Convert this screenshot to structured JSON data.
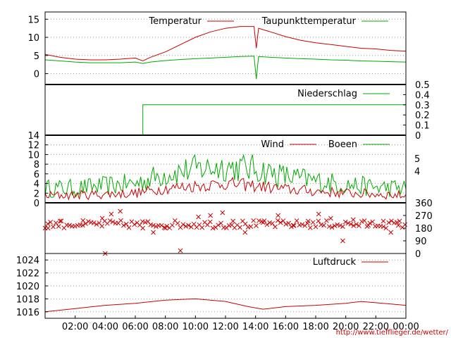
{
  "colors": {
    "red": "#cc0000",
    "green": "#00aa00",
    "axis": "#000000",
    "grid": "#999999",
    "source": "#cc0000"
  },
  "source_url": "http://www.tiefflieger.de/wetter/",
  "chart_data": [
    {
      "id": "temperature",
      "type": "line",
      "title": "",
      "ylim": [
        -3,
        17
      ],
      "y_ticks_left": [
        0,
        5,
        10,
        15
      ],
      "grid": true,
      "legend_position": "top-right",
      "x_unit": "hours",
      "series": [
        {
          "name": "Temperatur",
          "color": "#cc0000",
          "x": [
            0,
            1,
            2,
            3,
            4,
            5,
            6,
            6.5,
            7,
            8,
            9,
            10,
            11,
            12,
            13,
            13.9,
            14.05,
            14.2,
            15,
            16,
            17,
            18,
            19,
            20,
            21,
            22,
            23,
            24
          ],
          "y": [
            5.3,
            4.5,
            4.0,
            3.8,
            3.8,
            4.0,
            4.3,
            3.5,
            4.5,
            6.0,
            8.0,
            10.0,
            11.5,
            12.5,
            13.0,
            13.0,
            7.0,
            12.5,
            11.5,
            10.2,
            9.2,
            8.5,
            8.0,
            7.5,
            7.0,
            6.8,
            6.4,
            6.2
          ]
        },
        {
          "name": "Taupunkttemperatur",
          "color": "#00aa00",
          "x": [
            0,
            1,
            2,
            3,
            4,
            5,
            6,
            6.5,
            7,
            8,
            9,
            10,
            11,
            12,
            13,
            13.9,
            14.05,
            14.2,
            15,
            16,
            17,
            18,
            19,
            20,
            21,
            22,
            23,
            24
          ],
          "y": [
            3.8,
            3.5,
            3.2,
            3.0,
            3.0,
            3.0,
            3.2,
            2.8,
            3.2,
            3.6,
            3.9,
            4.1,
            4.3,
            4.5,
            4.7,
            4.8,
            -1.5,
            4.7,
            4.5,
            4.3,
            4.1,
            4.0,
            3.8,
            3.7,
            3.5,
            3.4,
            3.3,
            3.2
          ]
        }
      ]
    },
    {
      "id": "precipitation",
      "type": "line",
      "title": "",
      "ylim": [
        0,
        0.5
      ],
      "y_ticks_right": [
        0,
        0.1,
        0.2,
        0.3,
        0.4,
        0.5
      ],
      "grid": false,
      "legend_position": "top-right",
      "x_unit": "hours",
      "series": [
        {
          "name": "Niederschlag",
          "color": "#00aa00",
          "x": [
            0,
            6.5,
            6.5,
            24
          ],
          "y": [
            0,
            0,
            0.3,
            0.3
          ]
        }
      ]
    },
    {
      "id": "wind",
      "type": "line",
      "title": "",
      "ylim": [
        0,
        14
      ],
      "y_ticks_left": [
        0,
        2,
        4,
        6,
        8,
        10,
        12,
        14
      ],
      "y_ticks_right": [
        "4",
        "5"
      ],
      "grid": true,
      "legend_position": "top-right",
      "x_unit": "hours",
      "series": [
        {
          "name": "Wind",
          "color": "#cc0000",
          "x": [
            0,
            2,
            4,
            6,
            8,
            10,
            12,
            14,
            16,
            18,
            20,
            22,
            24
          ],
          "y": [
            1.5,
            1.6,
            1.8,
            2.0,
            3.0,
            3.5,
            4.0,
            3.5,
            2.8,
            2.4,
            2.0,
            1.8,
            1.5
          ]
        },
        {
          "name": "Boeen",
          "color": "#00aa00",
          "x": [
            0,
            2,
            4,
            6,
            8,
            10,
            12,
            14,
            16,
            18,
            20,
            22,
            24
          ],
          "y": [
            3.0,
            3.0,
            3.5,
            4.0,
            6.0,
            7.0,
            7.5,
            7.0,
            5.5,
            4.5,
            3.8,
            3.2,
            3.0
          ]
        }
      ]
    },
    {
      "id": "wind_direction",
      "type": "scatter",
      "title": "",
      "ylim": [
        0,
        360
      ],
      "y_ticks_right": [
        0,
        90,
        180,
        270,
        360
      ],
      "grid": false,
      "x_unit": "hours",
      "series": [
        {
          "color": "#cc0000",
          "x": [
            0.2,
            1.0,
            2.5,
            3.8,
            4.0,
            4.4,
            5.0,
            6.5,
            7.2,
            8.0,
            9.0,
            10.2,
            11.0,
            11.8,
            12.5,
            13.3,
            14.5,
            15.5,
            16.5,
            17.5,
            18.2,
            19.0,
            19.8,
            20.5,
            21.5,
            22.5,
            23.0,
            23.5
          ],
          "y": [
            180,
            230,
            200,
            250,
            0,
            280,
            300,
            180,
            150,
            180,
            20,
            260,
            270,
            290,
            230,
            150,
            220,
            270,
            200,
            230,
            280,
            250,
            90,
            240,
            200,
            230,
            150,
            200
          ]
        }
      ]
    },
    {
      "id": "pressure",
      "type": "line",
      "title": "",
      "ylim": [
        1015,
        1025
      ],
      "y_ticks_left": [
        1016,
        1018,
        1020,
        1022,
        1024
      ],
      "grid": true,
      "legend_position": "top-right",
      "x_unit": "hours",
      "x_tick_labels": [
        "02:00",
        "04:00",
        "06:00",
        "08:00",
        "10:00",
        "12:00",
        "14:00",
        "16:00",
        "18:00",
        "20:00",
        "22:00",
        "00:00"
      ],
      "x_tick_values": [
        2,
        4,
        6,
        8,
        10,
        12,
        14,
        16,
        18,
        20,
        22,
        24
      ],
      "series": [
        {
          "name": "Luftdruck",
          "color": "#cc0000",
          "x": [
            0,
            2,
            4,
            6,
            8,
            10,
            12,
            13.5,
            14.5,
            16,
            18,
            20,
            21,
            22,
            23,
            24
          ],
          "y": [
            1016.0,
            1016.5,
            1017.0,
            1017.3,
            1017.8,
            1018.0,
            1017.6,
            1016.8,
            1016.4,
            1016.8,
            1017.0,
            1017.3,
            1017.6,
            1017.4,
            1017.2,
            1017.0
          ]
        }
      ]
    }
  ]
}
